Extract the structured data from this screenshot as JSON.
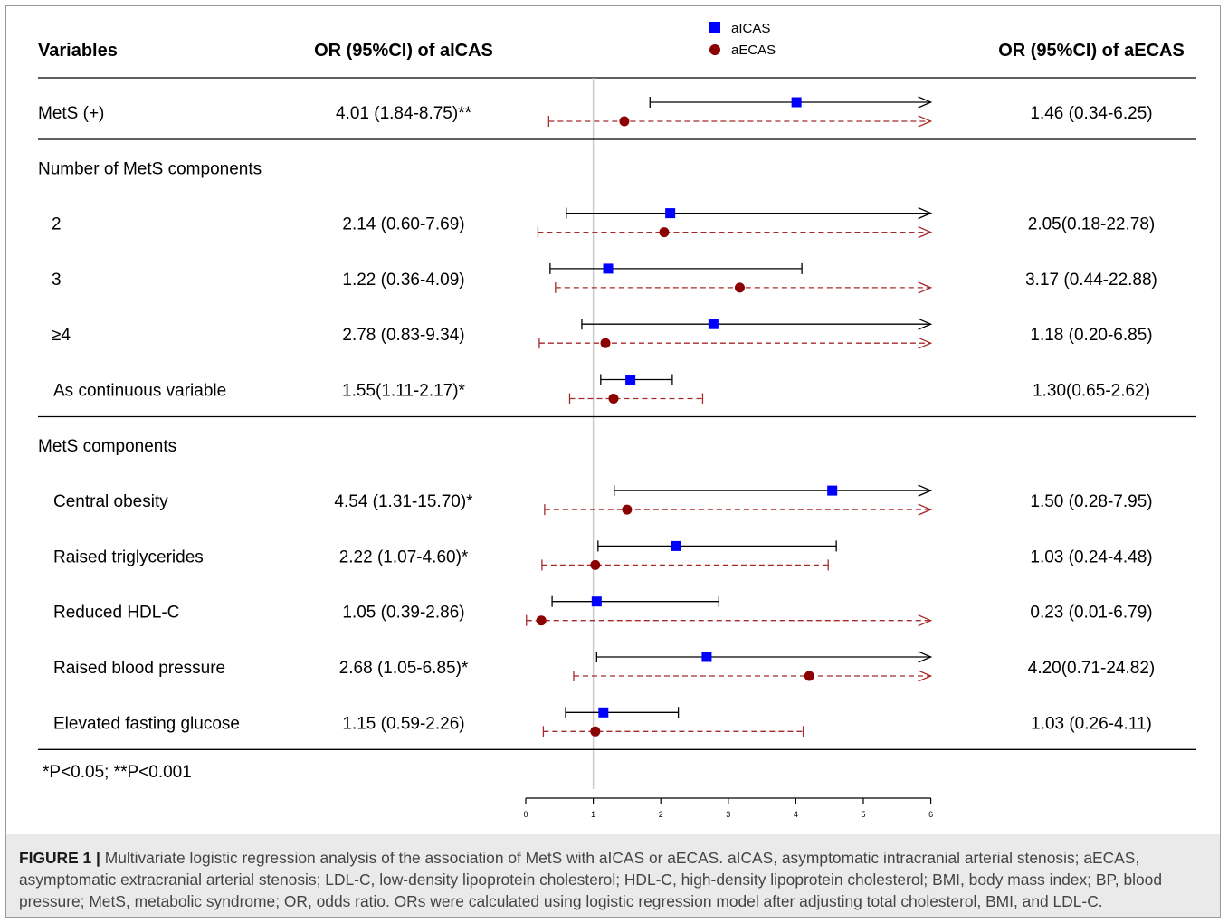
{
  "headers": {
    "variables": "Variables",
    "or_aicas": "OR (95%CI) of aICAS",
    "or_aecas": "OR (95%CI) of aECAS"
  },
  "legend": [
    {
      "name": "aICAS",
      "color": "#0000ff",
      "marker": "square"
    },
    {
      "name": "aECAS",
      "color": "#8b0000",
      "marker": "circle"
    }
  ],
  "footnote": "*P<0.05;  **P<0.001",
  "caption": {
    "label": "FIGURE 1 |",
    "text": "Multivariate logistic regression analysis of the association of MetS with aICAS or aECAS. aICAS, asymptomatic intracranial arterial stenosis; aECAS, asymptomatic extracranial arterial stenosis; LDL-C, low-density lipoprotein cholesterol; HDL-C, high-density lipoprotein cholesterol; BMI, body mass index; BP, blood pressure; MetS, metabolic syndrome; OR, odds ratio. ORs were calculated using logistic regression model after adjusting total cholesterol, BMI, and LDL-C."
  },
  "chart_data": {
    "type": "scatter",
    "subtype": "forest-plot",
    "reference_line": 1,
    "xlim": [
      0,
      6
    ],
    "x_ticks": [
      "0",
      "1",
      "2",
      "3",
      "4",
      "5",
      "6"
    ],
    "arrow_meaning": "upper bound exceeds plotted range",
    "rows": [
      {
        "kind": "item",
        "label": "MetS (+)",
        "indent": false,
        "aicas_text": "4.01 (1.84-8.75)**",
        "aecas_text": "1.46 (0.34-6.25)",
        "aicas": [
          4.01,
          1.84,
          8.75
        ],
        "aecas": [
          1.46,
          0.34,
          6.25
        ],
        "separator_after": true
      },
      {
        "kind": "header",
        "label": "Number of MetS components"
      },
      {
        "kind": "item",
        "label": "2",
        "indent": true,
        "aicas_text": "2.14 (0.60-7.69)",
        "aecas_text": "2.05(0.18-22.78)",
        "aicas": [
          2.14,
          0.6,
          7.69
        ],
        "aecas": [
          2.05,
          0.18,
          22.78
        ]
      },
      {
        "kind": "item",
        "label": "3",
        "indent": true,
        "aicas_text": "1.22 (0.36-4.09)",
        "aecas_text": "3.17 (0.44-22.88)",
        "aicas": [
          1.22,
          0.36,
          4.09
        ],
        "aecas": [
          3.17,
          0.44,
          22.88
        ]
      },
      {
        "kind": "item",
        "label": "≥4",
        "indent": true,
        "aicas_text": "2.78 (0.83-9.34)",
        "aecas_text": "1.18 (0.20-6.85)",
        "aicas": [
          2.78,
          0.83,
          9.34
        ],
        "aecas": [
          1.18,
          0.2,
          6.85
        ]
      },
      {
        "kind": "item",
        "label": "As continuous variable",
        "indent": true,
        "aicas_text": "1.55(1.11-2.17)*",
        "aecas_text": "1.30(0.65-2.62)",
        "aicas": [
          1.55,
          1.11,
          2.17
        ],
        "aecas": [
          1.3,
          0.65,
          2.62
        ],
        "separator_after": true
      },
      {
        "kind": "header",
        "label": "MetS components"
      },
      {
        "kind": "item",
        "label": "Central obesity",
        "indent": true,
        "aicas_text": "4.54 (1.31-15.70)*",
        "aecas_text": "1.50 (0.28-7.95)",
        "aicas": [
          4.54,
          1.31,
          15.7
        ],
        "aecas": [
          1.5,
          0.28,
          7.95
        ]
      },
      {
        "kind": "item",
        "label": "Raised triglycerides",
        "indent": true,
        "aicas_text": "2.22 (1.07-4.60)*",
        "aecas_text": "1.03 (0.24-4.48)",
        "aicas": [
          2.22,
          1.07,
          4.6
        ],
        "aecas": [
          1.03,
          0.24,
          4.48
        ]
      },
      {
        "kind": "item",
        "label": "Reduced HDL-C",
        "indent": true,
        "aicas_text": "1.05 (0.39-2.86)",
        "aecas_text": "0.23 (0.01-6.79)",
        "aicas": [
          1.05,
          0.39,
          2.86
        ],
        "aecas": [
          0.23,
          0.01,
          6.79
        ]
      },
      {
        "kind": "item",
        "label": "Raised blood pressure",
        "indent": true,
        "aicas_text": "2.68 (1.05-6.85)*",
        "aecas_text": "4.20(0.71-24.82)",
        "aicas": [
          2.68,
          1.05,
          6.85
        ],
        "aecas": [
          4.2,
          0.71,
          24.82
        ]
      },
      {
        "kind": "item",
        "label": "Elevated fasting glucose",
        "indent": true,
        "aicas_text": "1.15 (0.59-2.26)",
        "aecas_text": "1.03 (0.26-4.11)",
        "aicas": [
          1.15,
          0.59,
          2.26
        ],
        "aecas": [
          1.03,
          0.26,
          4.11
        ],
        "separator_after": true
      }
    ]
  }
}
